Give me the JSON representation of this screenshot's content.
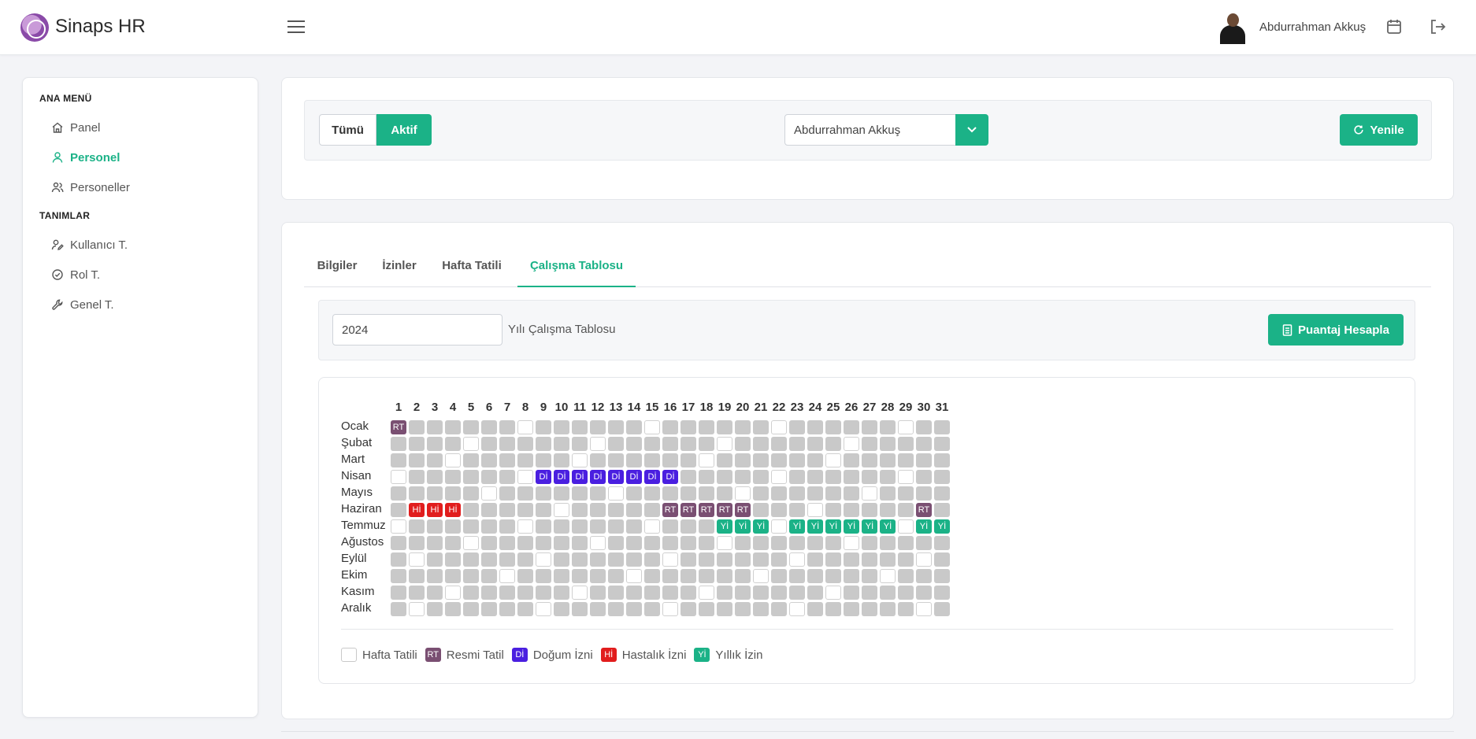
{
  "app": {
    "title": "Sinaps HR"
  },
  "user": {
    "name": "Abdurrahman Akkuş"
  },
  "sidebar": {
    "sections": [
      {
        "title": "ANA MENÜ",
        "items": [
          {
            "label": "Panel",
            "icon": "home-icon",
            "active": false
          },
          {
            "label": "Personel",
            "icon": "user-icon",
            "active": true
          },
          {
            "label": "Personeller",
            "icon": "users-icon",
            "active": false
          }
        ]
      },
      {
        "title": "TANIMLAR",
        "items": [
          {
            "label": "Kullanıcı T.",
            "icon": "user-edit-icon",
            "active": false
          },
          {
            "label": "Rol T.",
            "icon": "check-circle-icon",
            "active": false
          },
          {
            "label": "Genel T.",
            "icon": "wrench-icon",
            "active": false
          }
        ]
      }
    ]
  },
  "filter": {
    "all_label": "Tümü",
    "active_label": "Aktif",
    "employee_selected": "Abdurrahman Akkuş",
    "refresh_label": "Yenile"
  },
  "tabs": [
    {
      "label": "Bilgiler",
      "active": false
    },
    {
      "label": "İzinler",
      "active": false
    },
    {
      "label": "Hafta Tatili",
      "active": false
    },
    {
      "label": "Çalışma Tablosu",
      "active": true
    }
  ],
  "work_table": {
    "year_value": "2024",
    "year_suffix": "Yılı Çalışma Tablosu",
    "calc_button": "Puantaj Hesapla",
    "days": [
      1,
      2,
      3,
      4,
      5,
      6,
      7,
      8,
      9,
      10,
      11,
      12,
      13,
      14,
      15,
      16,
      17,
      18,
      19,
      20,
      21,
      22,
      23,
      24,
      25,
      26,
      27,
      28,
      29,
      30,
      31
    ],
    "months": [
      {
        "name": "Ocak",
        "weekly": [
          8,
          15,
          22,
          29
        ],
        "events": {
          "1": "RT"
        }
      },
      {
        "name": "Şubat",
        "weekly": [
          5,
          12,
          19,
          26
        ],
        "events": {}
      },
      {
        "name": "Mart",
        "weekly": [
          4,
          11,
          18,
          25
        ],
        "events": {}
      },
      {
        "name": "Nisan",
        "weekly": [
          1,
          8,
          22,
          29
        ],
        "events": {
          "9": "Dİ",
          "10": "Dİ",
          "11": "Dİ",
          "12": "Dİ",
          "13": "Dİ",
          "14": "Dİ",
          "15": "Dİ",
          "16": "Dİ"
        }
      },
      {
        "name": "Mayıs",
        "weekly": [
          6,
          13,
          20,
          27
        ],
        "events": {}
      },
      {
        "name": "Haziran",
        "weekly": [
          10,
          24
        ],
        "events": {
          "2": "Hİ",
          "3": "Hİ",
          "4": "Hİ",
          "16": "RT",
          "17": "RT",
          "18": "RT",
          "19": "RT",
          "20": "RT",
          "30": "RT"
        }
      },
      {
        "name": "Temmuz",
        "weekly": [
          1,
          8,
          15,
          22,
          29
        ],
        "events": {
          "19": "Yİ",
          "20": "Yİ",
          "21": "Yİ",
          "23": "Yİ",
          "24": "Yİ",
          "25": "Yİ",
          "26": "Yİ",
          "27": "Yİ",
          "28": "Yİ",
          "30": "Yİ",
          "31": "Yİ"
        }
      },
      {
        "name": "Ağustos",
        "weekly": [
          5,
          12,
          19,
          26
        ],
        "events": {}
      },
      {
        "name": "Eylül",
        "weekly": [
          2,
          9,
          16,
          23,
          30
        ],
        "events": {}
      },
      {
        "name": "Ekim",
        "weekly": [
          7,
          14,
          21,
          28
        ],
        "events": {}
      },
      {
        "name": "Kasım",
        "weekly": [
          4,
          11,
          18,
          25
        ],
        "events": {}
      },
      {
        "name": "Aralık",
        "weekly": [
          2,
          9,
          16,
          23,
          30
        ],
        "events": {}
      }
    ],
    "codes": {
      "RT": "#7a4f72",
      "Dİ": "#4a1fe0",
      "Hİ": "#e11d1d",
      "Yİ": "#1bb287"
    },
    "legend": [
      {
        "code": "",
        "label": "Hafta Tatili",
        "color": "#ffffff"
      },
      {
        "code": "RT",
        "label": "Resmi Tatil",
        "color": "#7a4f72"
      },
      {
        "code": "Dİ",
        "label": "Doğum İzni",
        "color": "#4a1fe0"
      },
      {
        "code": "Hİ",
        "label": "Hastalık İzni",
        "color": "#e11d1d"
      },
      {
        "code": "Yİ",
        "label": "Yıllık İzin",
        "color": "#1bb287"
      }
    ]
  }
}
